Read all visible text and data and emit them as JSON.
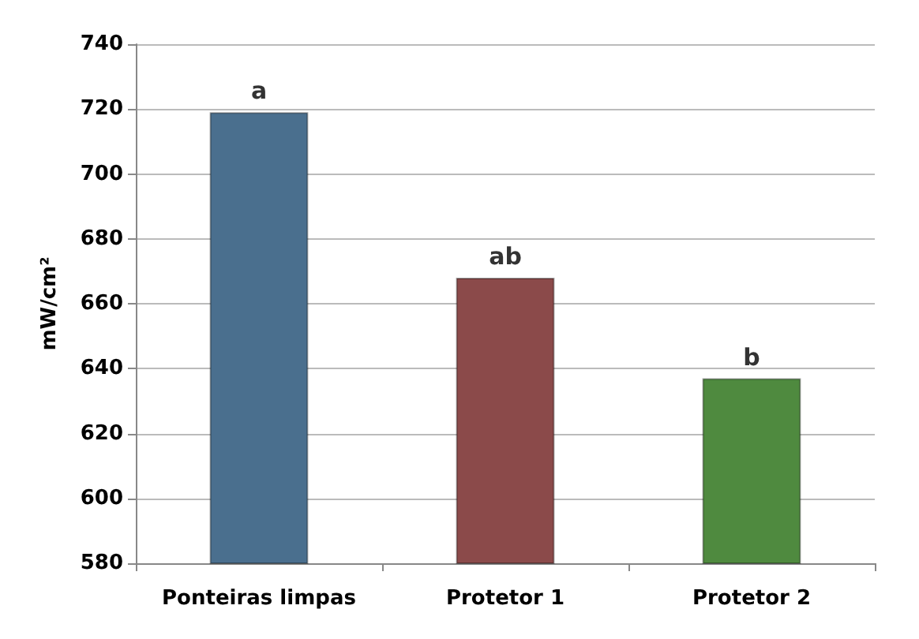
{
  "chart_data": {
    "type": "bar",
    "ylabel": "mW/cm²",
    "categories": [
      "Ponteiras limpas",
      "Protetor 1",
      "Protetor 2"
    ],
    "values": [
      719,
      668,
      637
    ],
    "colors": [
      "#4a6f8e",
      "#8b4a4a",
      "#4f8a3f"
    ],
    "ylim": [
      580,
      740
    ],
    "yticks": [
      580,
      600,
      620,
      640,
      660,
      680,
      700,
      720,
      740
    ],
    "grid": "y",
    "annotations": [
      {
        "text": "a",
        "x": "Ponteiras limpas",
        "y": 719
      },
      {
        "text": "ab",
        "x": "Protetor 1",
        "y": 668
      },
      {
        "text": "b",
        "x": "Protetor 2",
        "y": 637
      }
    ]
  }
}
